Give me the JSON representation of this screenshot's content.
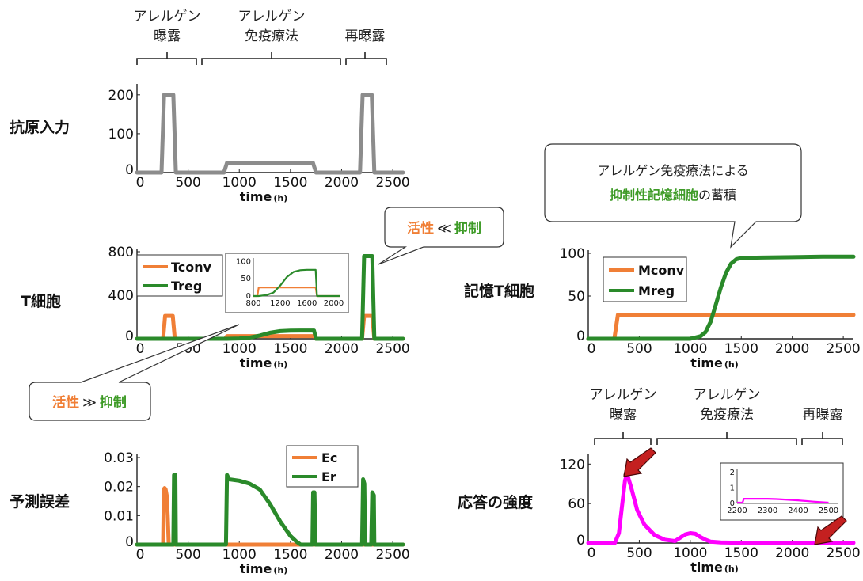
{
  "colors": {
    "gray": "#8c8c8c",
    "orange": "#f07f36",
    "green": "#2a8a2a",
    "magenta": "#ff00ff",
    "arrow": "#c42020",
    "callout_orange": "#f07f36",
    "callout_green": "#3e9b27"
  },
  "phases_top": [
    "アレルゲン\n曝露",
    "アレルゲン\n免疫療法",
    "再曝露"
  ],
  "phases_bottom": [
    "アレルゲン\n曝露",
    "アレルゲン\n免疫療法",
    "再曝露"
  ],
  "row_labels": {
    "antigen": "抗原入力",
    "tcell": "T細胞",
    "error": "予測誤差",
    "memory": "記憶T細胞",
    "response": "応答の強度"
  },
  "xlabel": "time",
  "xunit": "(h)",
  "callouts": {
    "tcell_high": {
      "left": "活性",
      "op": "≪",
      "right": "抑制"
    },
    "tcell_low": {
      "left": "活性",
      "op": "≫",
      "right": "抑制"
    },
    "memory_line1": "アレルゲン免疫療法による",
    "memory_line2_green": "抑制性記憶細胞",
    "memory_line2_rest": "の蓄積"
  },
  "chart_data": [
    {
      "id": "antigen",
      "type": "line",
      "xlim": [
        0,
        2600
      ],
      "ylim": [
        0,
        220
      ],
      "xticks": [
        0,
        500,
        1000,
        1500,
        2000,
        2500
      ],
      "yticks": [
        0,
        100,
        200
      ],
      "series": [
        {
          "color_key": "gray",
          "x": [
            0,
            240,
            265,
            355,
            380,
            850,
            880,
            1720,
            1750,
            2180,
            2205,
            2295,
            2320,
            2600
          ],
          "y": [
            0,
            0,
            200,
            200,
            0,
            0,
            25,
            25,
            0,
            0,
            200,
            200,
            0,
            0
          ]
        }
      ]
    },
    {
      "id": "tcell",
      "type": "line",
      "xlim": [
        0,
        2600
      ],
      "ylim": [
        0,
        800
      ],
      "xticks": [
        0,
        500,
        1000,
        1500,
        2000,
        2500
      ],
      "yticks": [
        0,
        400,
        800
      ],
      "series": [
        {
          "name": "Tconv",
          "color_key": "orange",
          "x": [
            0,
            255,
            275,
            350,
            370,
            860,
            880,
            1730,
            1750,
            2200,
            2220,
            2300,
            2320,
            2600
          ],
          "y": [
            0,
            0,
            210,
            210,
            0,
            0,
            25,
            25,
            0,
            0,
            210,
            210,
            0,
            0
          ]
        },
        {
          "name": "Treg",
          "color_key": "green",
          "x": [
            0,
            880,
            1000,
            1100,
            1200,
            1300,
            1400,
            1500,
            1600,
            1730,
            1750,
            2200,
            2220,
            2300,
            2320,
            2600
          ],
          "y": [
            0,
            0,
            3,
            10,
            30,
            55,
            70,
            75,
            76,
            76,
            0,
            0,
            760,
            760,
            0,
            0
          ]
        }
      ],
      "inset": {
        "xlim": [
          800,
          2100
        ],
        "ylim": [
          0,
          110
        ],
        "xticks": [
          800,
          1200,
          1600,
          2000
        ],
        "yticks": [
          0,
          50,
          100
        ],
        "series": [
          {
            "color_key": "orange",
            "x": [
              800,
              860,
              880,
              1730,
              1750,
              2100
            ],
            "y": [
              0,
              0,
              25,
              25,
              0,
              0
            ]
          },
          {
            "color_key": "green",
            "x": [
              800,
              880,
              1000,
              1100,
              1200,
              1300,
              1400,
              1500,
              1600,
              1730,
              1750,
              2100
            ],
            "y": [
              0,
              0,
              3,
              10,
              30,
              55,
              70,
              75,
              76,
              76,
              0,
              0
            ]
          }
        ]
      }
    },
    {
      "id": "error",
      "type": "line",
      "xlim": [
        0,
        2600
      ],
      "ylim": [
        0,
        0.03
      ],
      "xticks": [
        0,
        500,
        1000,
        1500,
        2000,
        2500
      ],
      "yticks": [
        0,
        0.01,
        0.02,
        0.03
      ],
      "series": [
        {
          "name": "Ec",
          "color_key": "orange",
          "x": [
            0,
            255,
            262,
            270,
            280,
            290,
            300,
            310,
            2600
          ],
          "y": [
            0,
            0,
            0.019,
            0.0195,
            0.019,
            0.017,
            0.01,
            0,
            0
          ]
        },
        {
          "name": "Er",
          "color_key": "green",
          "x": [
            0,
            355,
            362,
            375,
            380,
            870,
            880,
            900,
            1000,
            1100,
            1200,
            1300,
            1400,
            1500,
            1560,
            1600,
            1715,
            1722,
            1735,
            1745,
            2200,
            2210,
            2222,
            2230,
            2290,
            2300,
            2315,
            2320,
            2600
          ],
          "y": [
            0,
            0,
            0.024,
            0.024,
            0,
            0,
            0.024,
            0.0225,
            0.022,
            0.021,
            0.019,
            0.014,
            0.008,
            0.003,
            0.001,
            0,
            0,
            0.018,
            0.018,
            0,
            0,
            0.0225,
            0.021,
            0,
            0,
            0.018,
            0.017,
            0,
            0
          ]
        }
      ]
    },
    {
      "id": "memory",
      "type": "line",
      "xlim": [
        0,
        2600
      ],
      "ylim": [
        0,
        100
      ],
      "xticks": [
        0,
        500,
        1000,
        1500,
        2000,
        2500
      ],
      "yticks": [
        0,
        50,
        100
      ],
      "series": [
        {
          "name": "Mconv",
          "color_key": "orange",
          "x": [
            0,
            255,
            290,
            2600
          ],
          "y": [
            0,
            0,
            28,
            28
          ]
        },
        {
          "name": "Mreg",
          "color_key": "green",
          "x": [
            0,
            1000,
            1100,
            1150,
            1200,
            1250,
            1300,
            1350,
            1400,
            1450,
            1500,
            1700,
            2000,
            2300,
            2600
          ],
          "y": [
            0,
            0,
            3,
            8,
            20,
            40,
            60,
            77,
            88,
            93,
            94.5,
            95,
            95.5,
            96,
            96
          ]
        }
      ]
    },
    {
      "id": "response",
      "type": "line",
      "xlim": [
        0,
        2600
      ],
      "ylim": [
        0,
        130
      ],
      "xticks": [
        0,
        500,
        1000,
        1500,
        2000,
        2500
      ],
      "yticks": [
        0,
        60,
        120
      ],
      "series": [
        {
          "color_key": "magenta",
          "x": [
            0,
            260,
            300,
            330,
            360,
            380,
            420,
            480,
            550,
            650,
            750,
            850,
            900,
            950,
            1000,
            1050,
            1100,
            1150,
            1200,
            1300,
            1500,
            2600
          ],
          "y": [
            0,
            0,
            15,
            55,
            95,
            105,
            85,
            50,
            28,
            12,
            5,
            3,
            8,
            13,
            15,
            14,
            9,
            5,
            2,
            0.8,
            0.3,
            0.3
          ]
        }
      ],
      "inset": {
        "xlim": [
          2200,
          2530
        ],
        "ylim": [
          0,
          2.2
        ],
        "xticks": [
          2200,
          2300,
          2400,
          2500
        ],
        "yticks": [
          0,
          1,
          2
        ],
        "series": [
          {
            "color_key": "magenta",
            "x": [
              2200,
              2218,
              2222,
              2300,
              2330,
              2400,
              2450,
              2500
            ],
            "y": [
              0.05,
              0.05,
              0.3,
              0.3,
              0.28,
              0.2,
              0.12,
              0.05
            ]
          }
        ]
      }
    }
  ]
}
